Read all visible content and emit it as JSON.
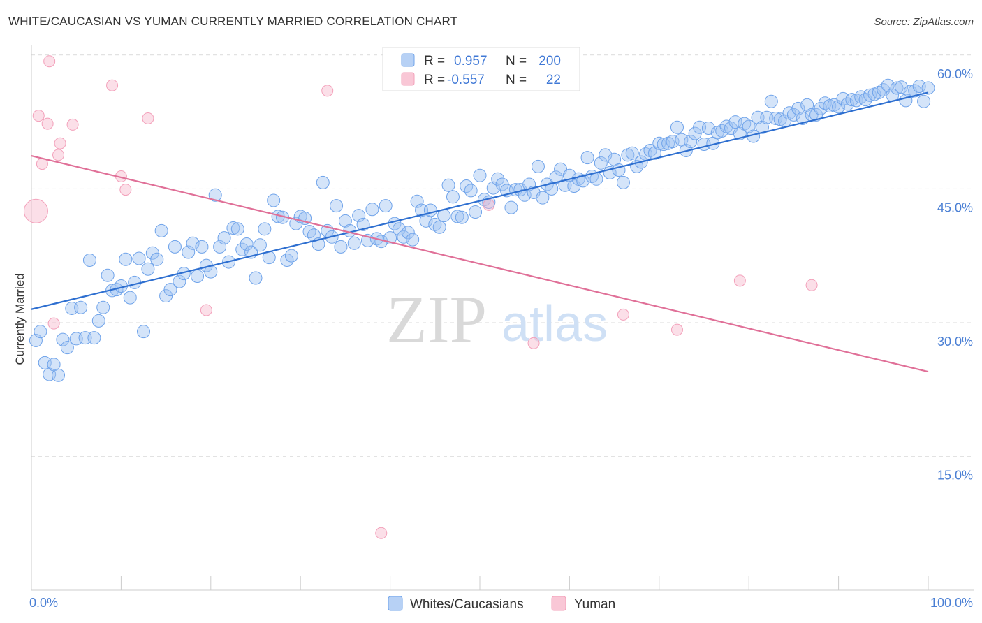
{
  "title": "WHITE/CAUCASIAN VS YUMAN CURRENTLY MARRIED CORRELATION CHART",
  "source": "Source: ZipAtlas.com",
  "watermark": {
    "zip": "ZIP",
    "atlas": "atlas"
  },
  "chart_data": {
    "type": "scatter",
    "xlabel": "",
    "ylabel": "Currently Married",
    "xlim": [
      0,
      100
    ],
    "ylim": [
      0,
      62
    ],
    "x_tick_labels": [
      "0.0%",
      "100.0%"
    ],
    "y_ticks": [
      15,
      30,
      45,
      60
    ],
    "y_tick_labels": [
      "15.0%",
      "30.0%",
      "45.0%",
      "60.0%"
    ],
    "grid": "horizontal dashed",
    "legend_position": "top-center",
    "legend_stats": [
      {
        "r_label": "R =",
        "r_value": "0.957",
        "n_label": "N =",
        "n_value": "200"
      },
      {
        "r_label": "R =",
        "r_value": "-0.557",
        "n_label": "N =",
        "n_value": "22"
      }
    ],
    "colors": {
      "whites": "#6fa3ea",
      "whites_line": "#2e6fd0",
      "yuman": "#f3a0ba",
      "yuman_line": "#e07098"
    },
    "series": [
      {
        "name": "Whites/Caucasians",
        "trend": [
          [
            0,
            31.5
          ],
          [
            100,
            55.8
          ]
        ],
        "points": [
          [
            0.5,
            28.0
          ],
          [
            1.0,
            29.0
          ],
          [
            1.5,
            25.5
          ],
          [
            2.0,
            24.2
          ],
          [
            2.5,
            25.3
          ],
          [
            3.0,
            24.1
          ],
          [
            3.5,
            28.1
          ],
          [
            4.0,
            27.2
          ],
          [
            4.5,
            31.6
          ],
          [
            5.0,
            28.2
          ],
          [
            5.5,
            31.7
          ],
          [
            6.0,
            28.3
          ],
          [
            6.5,
            37.0
          ],
          [
            7.0,
            28.3
          ],
          [
            7.5,
            30.2
          ],
          [
            8.0,
            31.7
          ],
          [
            8.5,
            35.3
          ],
          [
            9.0,
            33.6
          ],
          [
            9.5,
            33.7
          ],
          [
            10.0,
            34.1
          ],
          [
            10.5,
            37.1
          ],
          [
            11.0,
            32.8
          ],
          [
            11.5,
            34.5
          ],
          [
            12.0,
            37.2
          ],
          [
            12.5,
            29.0
          ],
          [
            13.0,
            36.0
          ],
          [
            13.5,
            37.8
          ],
          [
            14.0,
            37.1
          ],
          [
            14.5,
            40.3
          ],
          [
            15.0,
            33.0
          ],
          [
            15.5,
            33.7
          ],
          [
            16.0,
            38.5
          ],
          [
            16.5,
            34.6
          ],
          [
            17.0,
            35.5
          ],
          [
            17.5,
            37.9
          ],
          [
            18.0,
            38.9
          ],
          [
            18.5,
            35.2
          ],
          [
            19.0,
            38.5
          ],
          [
            19.5,
            36.4
          ],
          [
            20.0,
            35.7
          ],
          [
            20.5,
            44.3
          ],
          [
            21.0,
            38.5
          ],
          [
            21.5,
            39.5
          ],
          [
            22.0,
            36.8
          ],
          [
            22.5,
            40.6
          ],
          [
            23.0,
            40.5
          ],
          [
            23.5,
            38.2
          ],
          [
            24.0,
            38.8
          ],
          [
            24.5,
            37.9
          ],
          [
            25.0,
            35.0
          ],
          [
            25.5,
            38.7
          ],
          [
            26.0,
            40.5
          ],
          [
            26.5,
            37.3
          ],
          [
            27.0,
            43.7
          ],
          [
            27.5,
            41.9
          ],
          [
            28.0,
            41.8
          ],
          [
            28.5,
            37.0
          ],
          [
            29.0,
            37.5
          ],
          [
            29.5,
            41.1
          ],
          [
            30.0,
            41.9
          ],
          [
            30.5,
            41.7
          ],
          [
            31.0,
            40.2
          ],
          [
            31.5,
            39.8
          ],
          [
            32.0,
            38.8
          ],
          [
            32.5,
            45.7
          ],
          [
            33.0,
            40.3
          ],
          [
            33.5,
            39.6
          ],
          [
            34.0,
            43.1
          ],
          [
            34.5,
            38.5
          ],
          [
            35.0,
            41.4
          ],
          [
            35.5,
            40.3
          ],
          [
            36.0,
            38.9
          ],
          [
            36.5,
            42.0
          ],
          [
            37.0,
            41.0
          ],
          [
            37.5,
            39.2
          ],
          [
            38.0,
            42.7
          ],
          [
            38.5,
            39.4
          ],
          [
            39.0,
            39.1
          ],
          [
            39.5,
            43.1
          ],
          [
            40.0,
            39.5
          ],
          [
            40.5,
            41.1
          ],
          [
            41.0,
            40.5
          ],
          [
            41.5,
            39.6
          ],
          [
            42.0,
            40.1
          ],
          [
            42.5,
            39.3
          ],
          [
            43.0,
            43.6
          ],
          [
            43.5,
            42.6
          ],
          [
            44.0,
            41.4
          ],
          [
            44.5,
            42.6
          ],
          [
            45.0,
            41.0
          ],
          [
            45.5,
            40.7
          ],
          [
            46.0,
            42.0
          ],
          [
            46.5,
            45.4
          ],
          [
            47.0,
            44.1
          ],
          [
            47.5,
            41.9
          ],
          [
            48.0,
            41.8
          ],
          [
            48.5,
            45.3
          ],
          [
            49.0,
            44.8
          ],
          [
            49.5,
            42.4
          ],
          [
            50.0,
            46.5
          ],
          [
            50.5,
            43.8
          ],
          [
            51.0,
            43.5
          ],
          [
            51.5,
            45.1
          ],
          [
            52.0,
            46.1
          ],
          [
            52.5,
            45.5
          ],
          [
            53.0,
            44.8
          ],
          [
            53.5,
            42.9
          ],
          [
            54.0,
            44.9
          ],
          [
            54.5,
            44.9
          ],
          [
            55.0,
            44.3
          ],
          [
            55.5,
            45.5
          ],
          [
            56.0,
            44.6
          ],
          [
            56.5,
            47.5
          ],
          [
            57.0,
            44.0
          ],
          [
            57.5,
            45.5
          ],
          [
            58.0,
            45.0
          ],
          [
            58.5,
            46.3
          ],
          [
            59.0,
            47.2
          ],
          [
            59.5,
            45.4
          ],
          [
            60.0,
            46.5
          ],
          [
            60.5,
            45.3
          ],
          [
            61.0,
            46.1
          ],
          [
            61.5,
            45.9
          ],
          [
            62.0,
            48.5
          ],
          [
            62.5,
            46.4
          ],
          [
            63.0,
            46.1
          ],
          [
            63.5,
            47.9
          ],
          [
            64.0,
            48.8
          ],
          [
            64.5,
            46.8
          ],
          [
            65.0,
            48.3
          ],
          [
            65.5,
            47.1
          ],
          [
            66.0,
            45.7
          ],
          [
            66.5,
            48.8
          ],
          [
            67.0,
            49.0
          ],
          [
            67.5,
            47.5
          ],
          [
            68.0,
            48.0
          ],
          [
            68.5,
            48.9
          ],
          [
            69.0,
            49.3
          ],
          [
            69.5,
            49.0
          ],
          [
            70.0,
            50.1
          ],
          [
            70.5,
            50.0
          ],
          [
            71.0,
            50.1
          ],
          [
            71.5,
            50.3
          ],
          [
            72.0,
            51.9
          ],
          [
            72.5,
            50.5
          ],
          [
            73.0,
            49.3
          ],
          [
            73.5,
            50.3
          ],
          [
            74.0,
            51.2
          ],
          [
            74.5,
            51.9
          ],
          [
            75.0,
            50.0
          ],
          [
            75.5,
            51.8
          ],
          [
            76.0,
            50.1
          ],
          [
            76.5,
            51.3
          ],
          [
            77.0,
            51.5
          ],
          [
            77.5,
            52.0
          ],
          [
            78.0,
            51.8
          ],
          [
            78.5,
            52.5
          ],
          [
            79.0,
            51.2
          ],
          [
            79.5,
            52.3
          ],
          [
            80.0,
            52.0
          ],
          [
            80.5,
            50.9
          ],
          [
            81.0,
            53.0
          ],
          [
            81.5,
            51.9
          ],
          [
            82.0,
            53.0
          ],
          [
            82.5,
            54.8
          ],
          [
            83.0,
            52.9
          ],
          [
            83.5,
            52.8
          ],
          [
            84.0,
            52.6
          ],
          [
            84.5,
            53.5
          ],
          [
            85.0,
            53.3
          ],
          [
            85.5,
            54.0
          ],
          [
            86.0,
            52.9
          ],
          [
            86.5,
            54.4
          ],
          [
            87.0,
            53.3
          ],
          [
            87.5,
            53.3
          ],
          [
            88.0,
            54.0
          ],
          [
            88.5,
            54.6
          ],
          [
            89.0,
            54.3
          ],
          [
            89.5,
            54.4
          ],
          [
            90.0,
            54.2
          ],
          [
            90.5,
            55.1
          ],
          [
            91.0,
            54.5
          ],
          [
            91.5,
            55.0
          ],
          [
            92.0,
            54.9
          ],
          [
            92.5,
            55.3
          ],
          [
            93.0,
            55.0
          ],
          [
            93.5,
            55.5
          ],
          [
            94.0,
            55.6
          ],
          [
            94.5,
            55.8
          ],
          [
            95.0,
            56.1
          ],
          [
            95.5,
            56.6
          ],
          [
            96.0,
            55.5
          ],
          [
            96.5,
            56.3
          ],
          [
            97.0,
            56.4
          ],
          [
            97.5,
            54.9
          ],
          [
            98.0,
            55.9
          ],
          [
            98.5,
            56.0
          ],
          [
            99.0,
            56.5
          ],
          [
            99.5,
            54.8
          ],
          [
            100.0,
            56.3
          ]
        ]
      },
      {
        "name": "Yuman",
        "trend": [
          [
            0,
            48.7
          ],
          [
            100,
            24.5
          ]
        ],
        "points": [
          [
            0.5,
            42.5
          ],
          [
            0.8,
            53.2
          ],
          [
            1.2,
            47.8
          ],
          [
            1.8,
            52.3
          ],
          [
            2.0,
            59.3
          ],
          [
            2.5,
            29.9
          ],
          [
            3.0,
            48.8
          ],
          [
            3.2,
            50.1
          ],
          [
            4.6,
            52.2
          ],
          [
            9.0,
            56.6
          ],
          [
            10.0,
            46.4
          ],
          [
            10.5,
            44.9
          ],
          [
            13.0,
            52.9
          ],
          [
            19.5,
            31.4
          ],
          [
            33.0,
            56.0
          ],
          [
            39.0,
            6.4
          ],
          [
            51.0,
            43.2
          ],
          [
            56.0,
            27.7
          ],
          [
            66.0,
            30.9
          ],
          [
            72.0,
            29.2
          ],
          [
            79.0,
            34.7
          ],
          [
            87.0,
            34.2
          ]
        ]
      }
    ]
  }
}
